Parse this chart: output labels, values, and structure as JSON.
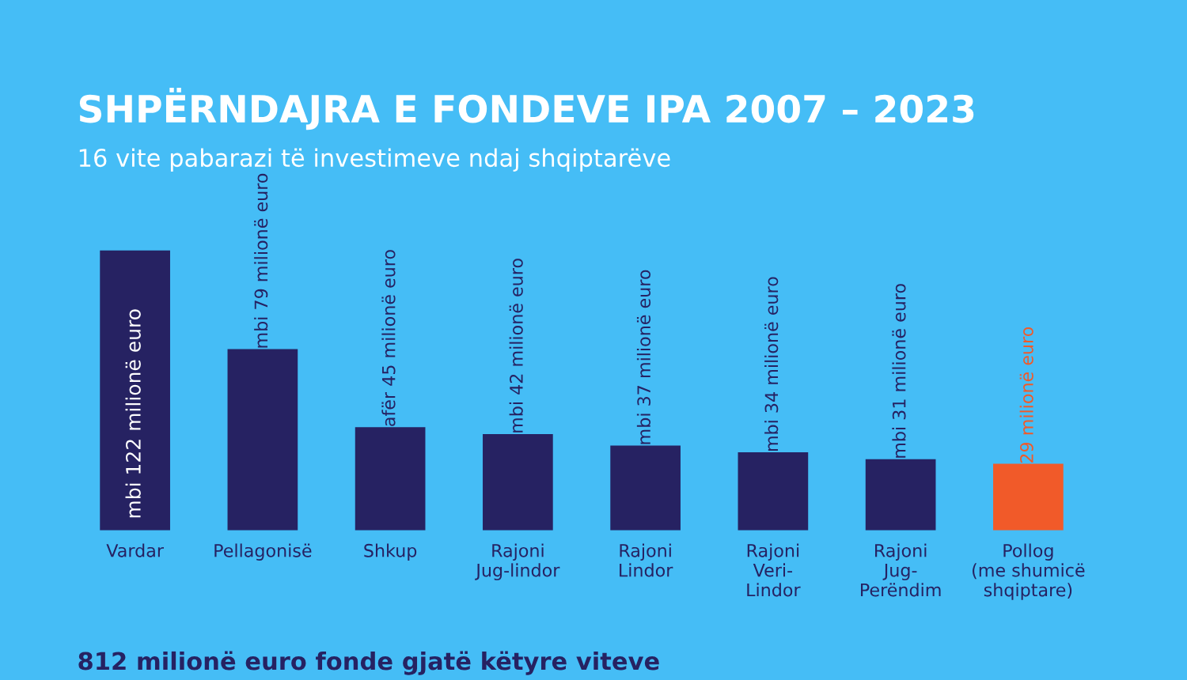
{
  "chart_data": {
    "type": "bar",
    "title": "SHPËRNDAJRA E FONDEVE IPA 2007 – 2023",
    "subtitle": "16 vite pabarazi të investimeve ndaj shqiptarëve",
    "categories": [
      "Vardar",
      "Pellagonisë",
      "Shkup",
      "Rajoni\nJug-lindor",
      "Rajoni\nLindor",
      "Rajoni\nVeri-\nLindor",
      "Rajoni\nJug-\nPerëndim",
      "Pollog\n(me shumicë\nshqiptare)"
    ],
    "values": [
      122,
      79,
      45,
      42,
      37,
      34,
      31,
      29
    ],
    "value_labels": [
      "mbi 122 milionë euro",
      "mbi 79 milionë euro",
      "afër 45 milionë euro",
      "mbi 42 milionë euro",
      "mbi 37 milionë euro",
      "mbi 34 milionë euro",
      "mbi 31 milionë euro",
      "29 milionë euro"
    ],
    "colors": [
      "#262262",
      "#262262",
      "#262262",
      "#262262",
      "#262262",
      "#262262",
      "#262262",
      "#f15a29"
    ],
    "tick_labels": "x",
    "grid": false,
    "legend": false,
    "annotations": [
      "812 milionë euro fonde gjatë këtyre viteve"
    ]
  }
}
